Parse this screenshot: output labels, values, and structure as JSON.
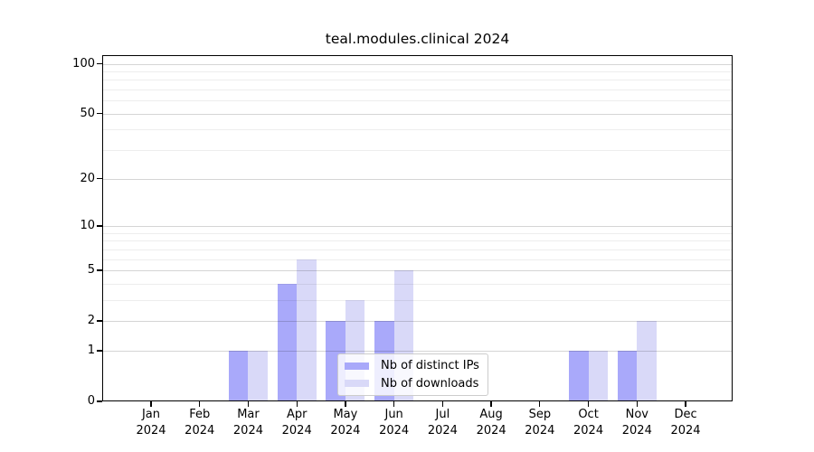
{
  "title": "teal.modules.clinical 2024",
  "legend": {
    "items": [
      {
        "label": "Nb of distinct IPs",
        "color": "#a9a9fa"
      },
      {
        "label": "Nb of downloads",
        "color": "#d9d9f8"
      }
    ]
  },
  "chart_data": {
    "type": "bar",
    "title": "teal.modules.clinical 2024",
    "yscale": "log1p",
    "grid": "on",
    "legend_position": "lower center-right inside axes",
    "categories": [
      "Jan",
      "Feb",
      "Mar",
      "Apr",
      "May",
      "Jun",
      "Jul",
      "Aug",
      "Sep",
      "Oct",
      "Nov",
      "Dec"
    ],
    "category_year": "2024",
    "series": [
      {
        "name": "Nb of distinct IPs",
        "color": "#a9a9fa",
        "values": [
          0,
          0,
          1,
          4,
          2,
          2,
          0,
          0,
          0,
          1,
          1,
          0
        ]
      },
      {
        "name": "Nb of downloads",
        "color": "#d9d9f8",
        "values": [
          0,
          0,
          1,
          6,
          3,
          5,
          0,
          0,
          0,
          1,
          2,
          0
        ]
      }
    ],
    "ylim": [
      0,
      100
    ],
    "yticks": [
      0,
      1,
      2,
      5,
      10,
      20,
      50,
      100
    ],
    "minor_gridlines": [
      3,
      4,
      6,
      7,
      8,
      9,
      30,
      40,
      60,
      70,
      80,
      90
    ]
  }
}
